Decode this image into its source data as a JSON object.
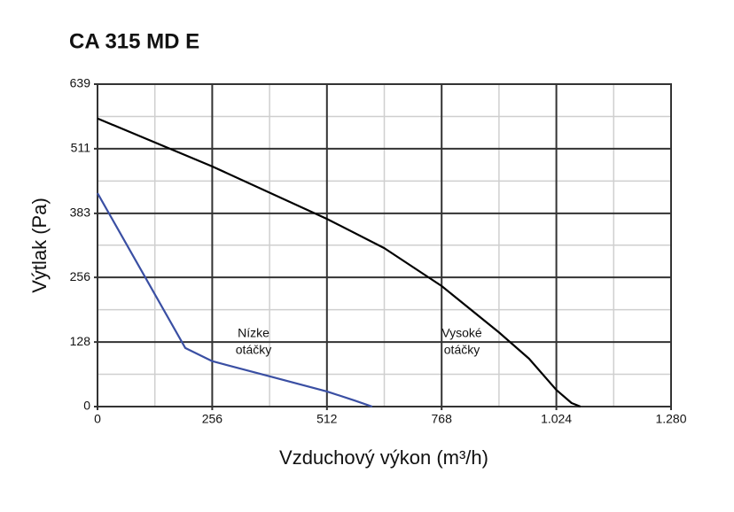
{
  "chart_data": {
    "type": "line",
    "title": "CA 315 MD E",
    "xlabel": "Vzduchový výkon (m³/h)",
    "ylabel": "Výtlak (Pa)",
    "annotations": [
      [
        "Nízke",
        "otáčky"
      ],
      [
        "Vysoké",
        "otáčky"
      ]
    ],
    "series": [
      {
        "color": "#000000",
        "x": [
          0,
          256,
          512,
          640,
          768,
          896,
          963,
          1024,
          1058,
          1078
        ],
        "values": [
          571,
          476,
          372,
          314,
          239,
          147,
          95,
          33,
          7,
          0
        ]
      },
      {
        "color": "#3a4fa3",
        "x": [
          0,
          196,
          256,
          384,
          512,
          574,
          613
        ],
        "values": [
          423,
          116,
          90,
          60,
          30,
          12,
          0
        ]
      }
    ],
    "xlim": [
      0,
      1280
    ],
    "ylim": [
      0,
      639
    ],
    "xticks": [
      0,
      256,
      512,
      768,
      {
        "value": 1024,
        "label": "1.024"
      },
      {
        "value": 1280,
        "label": "1.280"
      }
    ],
    "yticks": [
      0,
      128,
      256,
      383,
      511,
      639
    ],
    "xminor": [
      128,
      384,
      640,
      896,
      1152
    ],
    "yminor": [
      64,
      192,
      320,
      447,
      575
    ],
    "grid": true
  }
}
